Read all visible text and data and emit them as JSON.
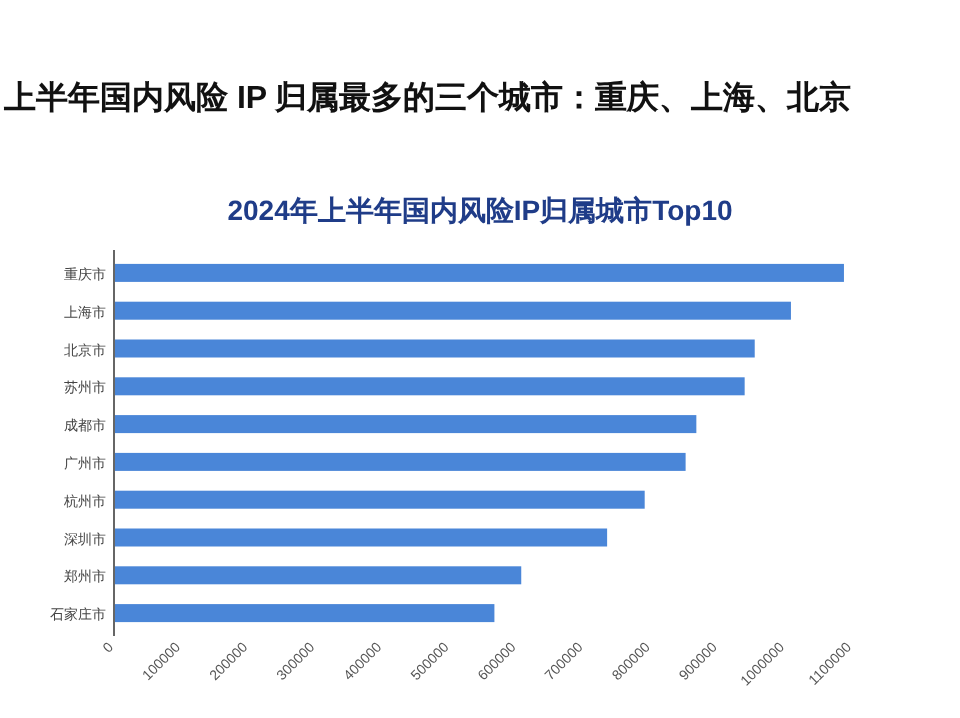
{
  "chart_data": {
    "type": "bar",
    "orientation": "horizontal",
    "title": "2024年上半年国内风险IP归属城市Top10",
    "annotations": [
      "上半年国内风险 IP 归属最多的三个城市：重庆、上海、北京"
    ],
    "categories": [
      "重庆市",
      "上海市",
      "北京市",
      "苏州市",
      "成都市",
      "广州市",
      "杭州市",
      "深圳市",
      "郑州市",
      "石家庄市"
    ],
    "values": [
      1088000,
      1009000,
      955000,
      940000,
      868000,
      852000,
      791000,
      735000,
      607000,
      567000
    ],
    "color": "#4a86d8",
    "xlim": [
      0,
      1100000
    ],
    "xticks": [
      0,
      100000,
      200000,
      300000,
      400000,
      500000,
      600000,
      700000,
      800000,
      900000,
      1000000,
      1100000
    ],
    "grid": false
  }
}
